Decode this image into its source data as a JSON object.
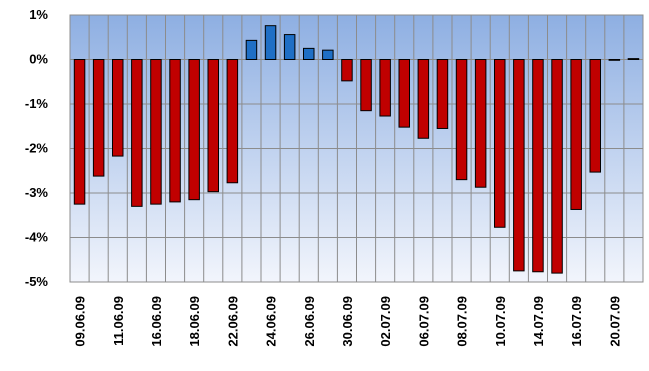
{
  "chart_data": {
    "type": "bar",
    "title": "",
    "xlabel": "",
    "ylabel": "",
    "ylim": [
      -5,
      1
    ],
    "y_ticks": [
      "1%",
      "0%",
      "-1%",
      "-2%",
      "-3%",
      "-4%",
      "-5%"
    ],
    "y_tick_values": [
      1,
      0,
      -1,
      -2,
      -3,
      -4,
      -5
    ],
    "grid": true,
    "legend": "none",
    "x_tick_labels": [
      "09.06.09",
      "11.06.09",
      "16.06.09",
      "18.06.09",
      "22.06.09",
      "24.06.09",
      "26.06.09",
      "30.06.09",
      "02.07.09",
      "06.07.09",
      "08.07.09",
      "10.07.09",
      "14.07.09",
      "16.07.09",
      "20.07.09"
    ],
    "values": [
      -3.25,
      -2.62,
      -2.17,
      -3.3,
      -3.25,
      -3.2,
      -3.15,
      -2.97,
      -2.77,
      0.43,
      0.76,
      0.56,
      0.25,
      0.21,
      -0.48,
      -1.15,
      -1.27,
      -1.52,
      -1.77,
      -1.55,
      -2.7,
      -2.87,
      -3.77,
      -4.75,
      -4.77,
      -4.8,
      -3.37,
      -2.53,
      0.0,
      0.02
    ],
    "colors": {
      "positive": "#1f6fc5",
      "negative": "#c00000",
      "bar_stroke": "#000000",
      "plot_bg_top": "#8eafe2",
      "plot_bg_bottom": "#f2f5fc",
      "grid": "#8c8c8c"
    }
  }
}
